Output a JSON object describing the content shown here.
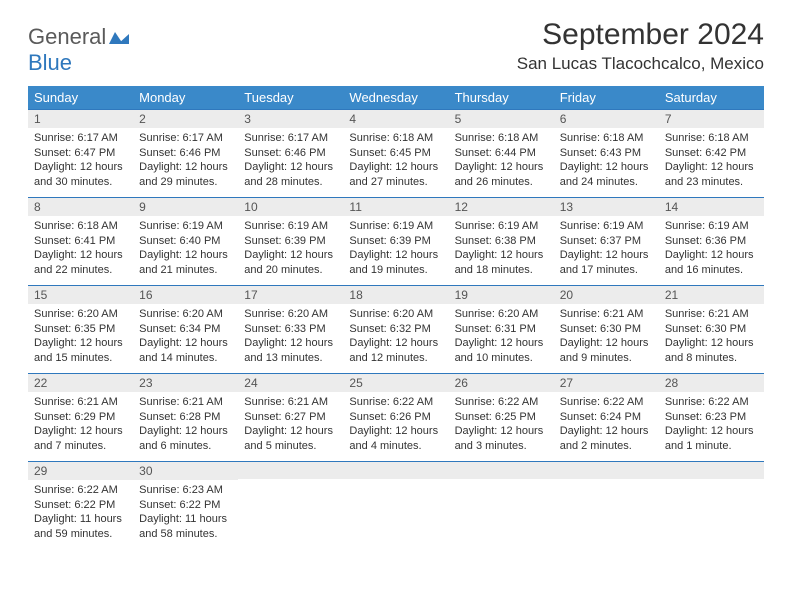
{
  "brand": {
    "part1": "General",
    "part2": "Blue",
    "accent": "#2f78bd",
    "text_color": "#5a5a5a"
  },
  "title": "September 2024",
  "location": "San Lucas Tlacochcalco, Mexico",
  "colors": {
    "header_bg": "#3a89c9",
    "header_text": "#ffffff",
    "daynum_bg": "#ececec",
    "daynum_text": "#555555",
    "border": "#2f78bd",
    "body_text": "#333333",
    "page_bg": "#ffffff"
  },
  "weekdays": [
    "Sunday",
    "Monday",
    "Tuesday",
    "Wednesday",
    "Thursday",
    "Friday",
    "Saturday"
  ],
  "days": [
    {
      "n": 1,
      "sunrise": "6:17 AM",
      "sunset": "6:47 PM",
      "daylight": "12 hours and 30 minutes."
    },
    {
      "n": 2,
      "sunrise": "6:17 AM",
      "sunset": "6:46 PM",
      "daylight": "12 hours and 29 minutes."
    },
    {
      "n": 3,
      "sunrise": "6:17 AM",
      "sunset": "6:46 PM",
      "daylight": "12 hours and 28 minutes."
    },
    {
      "n": 4,
      "sunrise": "6:18 AM",
      "sunset": "6:45 PM",
      "daylight": "12 hours and 27 minutes."
    },
    {
      "n": 5,
      "sunrise": "6:18 AM",
      "sunset": "6:44 PM",
      "daylight": "12 hours and 26 minutes."
    },
    {
      "n": 6,
      "sunrise": "6:18 AM",
      "sunset": "6:43 PM",
      "daylight": "12 hours and 24 minutes."
    },
    {
      "n": 7,
      "sunrise": "6:18 AM",
      "sunset": "6:42 PM",
      "daylight": "12 hours and 23 minutes."
    },
    {
      "n": 8,
      "sunrise": "6:18 AM",
      "sunset": "6:41 PM",
      "daylight": "12 hours and 22 minutes."
    },
    {
      "n": 9,
      "sunrise": "6:19 AM",
      "sunset": "6:40 PM",
      "daylight": "12 hours and 21 minutes."
    },
    {
      "n": 10,
      "sunrise": "6:19 AM",
      "sunset": "6:39 PM",
      "daylight": "12 hours and 20 minutes."
    },
    {
      "n": 11,
      "sunrise": "6:19 AM",
      "sunset": "6:39 PM",
      "daylight": "12 hours and 19 minutes."
    },
    {
      "n": 12,
      "sunrise": "6:19 AM",
      "sunset": "6:38 PM",
      "daylight": "12 hours and 18 minutes."
    },
    {
      "n": 13,
      "sunrise": "6:19 AM",
      "sunset": "6:37 PM",
      "daylight": "12 hours and 17 minutes."
    },
    {
      "n": 14,
      "sunrise": "6:19 AM",
      "sunset": "6:36 PM",
      "daylight": "12 hours and 16 minutes."
    },
    {
      "n": 15,
      "sunrise": "6:20 AM",
      "sunset": "6:35 PM",
      "daylight": "12 hours and 15 minutes."
    },
    {
      "n": 16,
      "sunrise": "6:20 AM",
      "sunset": "6:34 PM",
      "daylight": "12 hours and 14 minutes."
    },
    {
      "n": 17,
      "sunrise": "6:20 AM",
      "sunset": "6:33 PM",
      "daylight": "12 hours and 13 minutes."
    },
    {
      "n": 18,
      "sunrise": "6:20 AM",
      "sunset": "6:32 PM",
      "daylight": "12 hours and 12 minutes."
    },
    {
      "n": 19,
      "sunrise": "6:20 AM",
      "sunset": "6:31 PM",
      "daylight": "12 hours and 10 minutes."
    },
    {
      "n": 20,
      "sunrise": "6:21 AM",
      "sunset": "6:30 PM",
      "daylight": "12 hours and 9 minutes."
    },
    {
      "n": 21,
      "sunrise": "6:21 AM",
      "sunset": "6:30 PM",
      "daylight": "12 hours and 8 minutes."
    },
    {
      "n": 22,
      "sunrise": "6:21 AM",
      "sunset": "6:29 PM",
      "daylight": "12 hours and 7 minutes."
    },
    {
      "n": 23,
      "sunrise": "6:21 AM",
      "sunset": "6:28 PM",
      "daylight": "12 hours and 6 minutes."
    },
    {
      "n": 24,
      "sunrise": "6:21 AM",
      "sunset": "6:27 PM",
      "daylight": "12 hours and 5 minutes."
    },
    {
      "n": 25,
      "sunrise": "6:22 AM",
      "sunset": "6:26 PM",
      "daylight": "12 hours and 4 minutes."
    },
    {
      "n": 26,
      "sunrise": "6:22 AM",
      "sunset": "6:25 PM",
      "daylight": "12 hours and 3 minutes."
    },
    {
      "n": 27,
      "sunrise": "6:22 AM",
      "sunset": "6:24 PM",
      "daylight": "12 hours and 2 minutes."
    },
    {
      "n": 28,
      "sunrise": "6:22 AM",
      "sunset": "6:23 PM",
      "daylight": "12 hours and 1 minute."
    },
    {
      "n": 29,
      "sunrise": "6:22 AM",
      "sunset": "6:22 PM",
      "daylight": "11 hours and 59 minutes."
    },
    {
      "n": 30,
      "sunrise": "6:23 AM",
      "sunset": "6:22 PM",
      "daylight": "11 hours and 58 minutes."
    }
  ],
  "labels": {
    "sunrise": "Sunrise:",
    "sunset": "Sunset:",
    "daylight": "Daylight:"
  },
  "layout": {
    "start_weekday": 0,
    "total_days": 30,
    "cols": 7,
    "rows": 5
  }
}
